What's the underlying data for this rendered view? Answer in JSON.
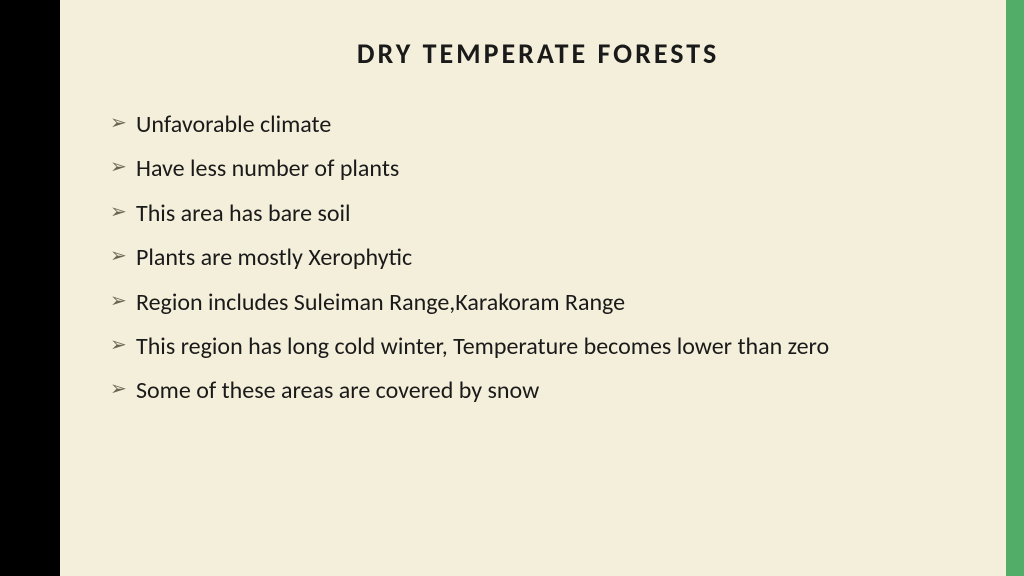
{
  "slide": {
    "background_color": "#f4efda",
    "left_edge_color": "#000000",
    "right_edge_color": "#52ad68",
    "title": {
      "text": "DRY TEMPERATE FORESTS",
      "color": "#1a1a1a",
      "fontsize": 28
    },
    "bullet_marker_color": "#6b6450",
    "body_text_color": "#1a1a1a",
    "body_fontsize": 24,
    "bullets": [
      "Unfavorable climate",
      "Have less number of plants",
      "This area has bare soil",
      "Plants are mostly Xerophytic",
      "Region includes Suleiman Range,Karakoram Range",
      "This region has long cold winter, Temperature becomes lower than zero",
      "Some of these areas are covered by snow"
    ]
  }
}
